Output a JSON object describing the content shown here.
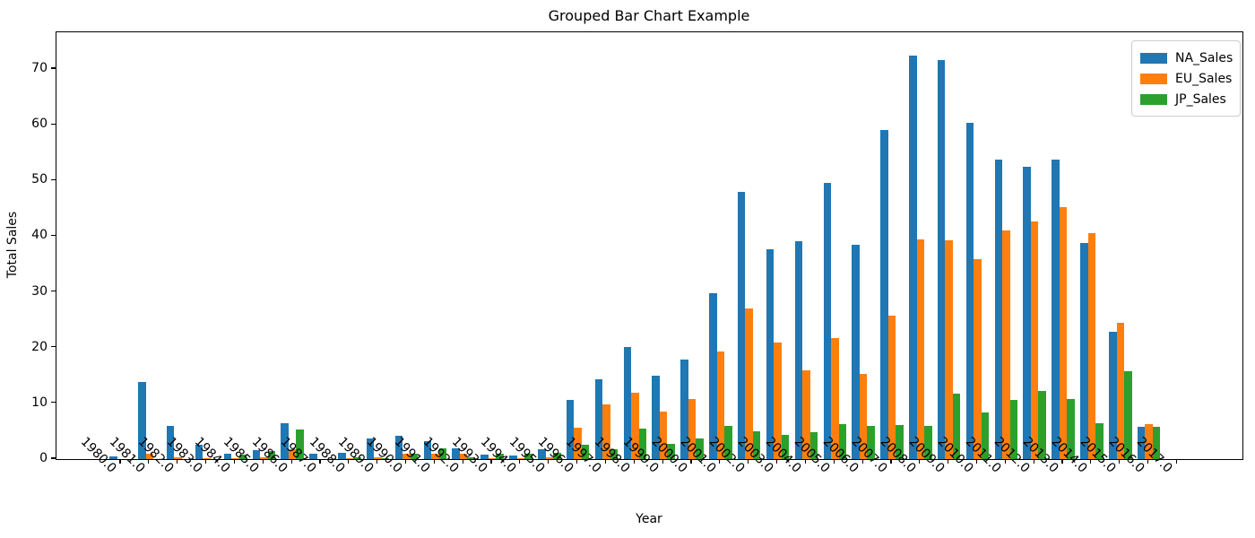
{
  "chart_data": {
    "type": "bar",
    "title": "Grouped Bar Chart Example",
    "xlabel": "Year",
    "ylabel": "Total Sales",
    "categories": [
      "1980.0",
      "1981.0",
      "1982.0",
      "1983.0",
      "1984.0",
      "1985.0",
      "1986.0",
      "1987.0",
      "1988.0",
      "1989.0",
      "1990.0",
      "1991.0",
      "1992.0",
      "1993.0",
      "1994.0",
      "1995.0",
      "1996.0",
      "1997.0",
      "1998.0",
      "1999.0",
      "2000.0",
      "2001.0",
      "2002.0",
      "2003.0",
      "2004.0",
      "2005.0",
      "2006.0",
      "2007.0",
      "2008.0",
      "2009.0",
      "2010.0",
      "2011.0",
      "2012.0",
      "2013.0",
      "2014.0",
      "2015.0",
      "2016.0",
      "2017.0"
    ],
    "series": [
      {
        "name": "NA_Sales",
        "color": "#1f77b4",
        "values": [
          0.5,
          13.9,
          6.0,
          2.6,
          0.9,
          1.6,
          6.4,
          1.0,
          1.2,
          3.7,
          4.2,
          3.3,
          2.0,
          0.8,
          0.6,
          1.7,
          10.6,
          14.3,
          20.1,
          14.9,
          17.8,
          29.7,
          47.9,
          37.7,
          39.1,
          49.6,
          38.4,
          59.0,
          72.4,
          71.6,
          60.4,
          53.8,
          52.5,
          53.8,
          38.8,
          22.9,
          5.8,
          0
        ]
      },
      {
        "name": "EU_Sales",
        "color": "#ff7f0e",
        "values": [
          0,
          0.9,
          0.3,
          0.2,
          0.1,
          0.3,
          1.7,
          0,
          0.2,
          0.4,
          0.9,
          0.9,
          1.0,
          0.1,
          0.1,
          0.3,
          5.7,
          9.8,
          11.9,
          8.6,
          10.8,
          19.3,
          27.0,
          20.9,
          16.0,
          21.8,
          15.3,
          25.8,
          39.5,
          39.2,
          35.9,
          41.1,
          42.7,
          45.3,
          40.5,
          24.5,
          6.3,
          0
        ]
      },
      {
        "name": "JP_Sales",
        "color": "#2ca02c",
        "values": [
          0,
          0,
          0,
          0,
          0.8,
          1.5,
          5.3,
          0,
          0.4,
          0.2,
          0.9,
          1.9,
          0.4,
          0.9,
          0.9,
          1.2,
          2.6,
          1.8,
          5.5,
          2.8,
          3.7,
          6.0,
          5.0,
          4.3,
          4.8,
          6.3,
          6.0,
          6.1,
          6.0,
          11.8,
          8.4,
          10.7,
          12.3,
          10.8,
          6.5,
          15.8,
          5.8,
          0
        ]
      }
    ],
    "ylim": [
      0,
      76.6
    ],
    "yticks": [
      0,
      10,
      20,
      30,
      40,
      50,
      60,
      70
    ],
    "grid": false,
    "legend_position": "upper right",
    "x_tick_rotation": 45
  }
}
